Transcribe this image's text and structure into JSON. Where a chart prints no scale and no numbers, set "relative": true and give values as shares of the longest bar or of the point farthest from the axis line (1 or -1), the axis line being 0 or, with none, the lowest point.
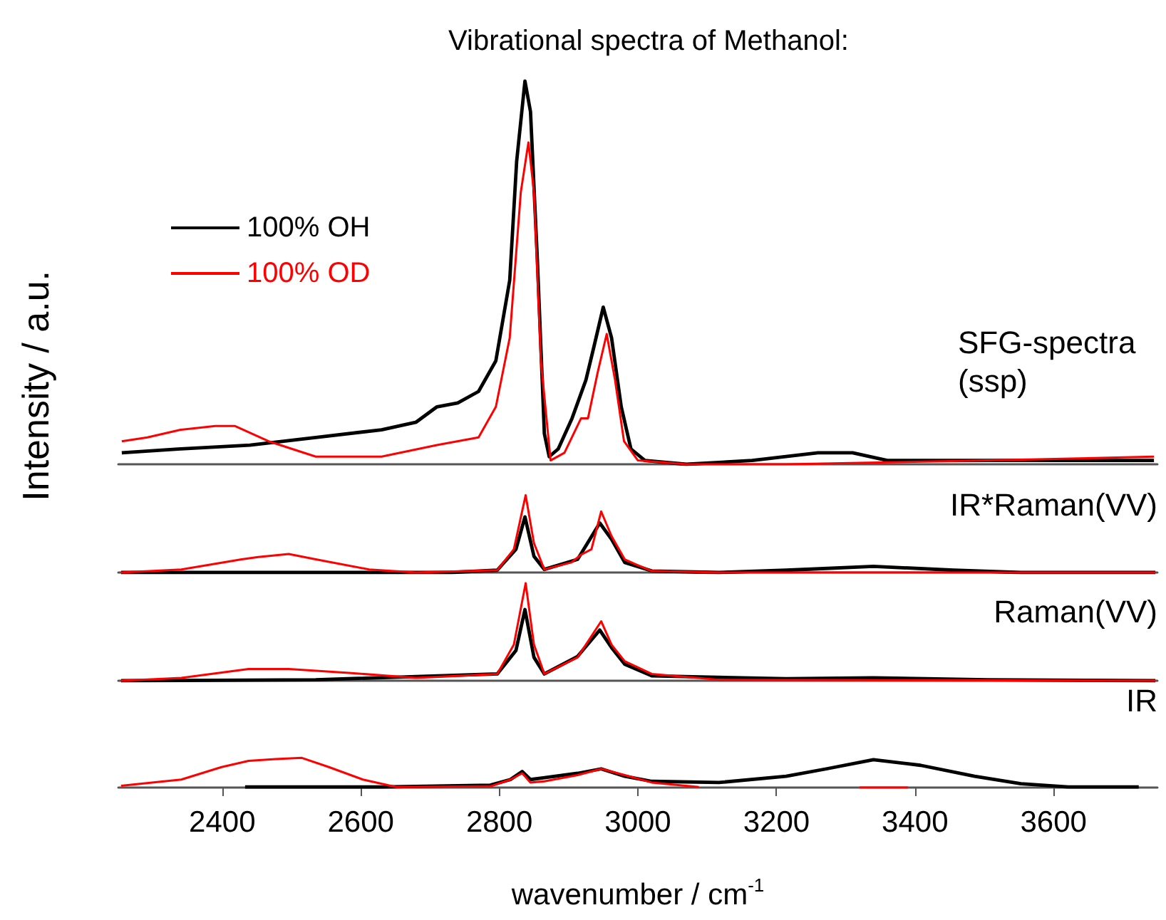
{
  "chart_data": [
    {
      "type": "line",
      "title": "Vibrational spectra of Methanol:",
      "ylabel": "Intensity / a.u.",
      "annotations": [
        "SFG-spectra (ssp)"
      ],
      "relative": true,
      "legend": "left",
      "tick_labels": false,
      "xlim": [
        2250,
        3750
      ],
      "xticks": [
        2400,
        2600,
        2800,
        3000,
        3200,
        3400,
        3600
      ],
      "series": [
        {
          "name": "100% OH",
          "color": "#000000",
          "x": [
            2255,
            2340,
            2440,
            2535,
            2630,
            2680,
            2710,
            2740,
            2770,
            2795,
            2815,
            2825,
            2837,
            2845,
            2855,
            2865,
            2872,
            2885,
            2905,
            2925,
            2937,
            2950,
            2962,
            2976,
            2990,
            3010,
            3070,
            3165,
            3260,
            3310,
            3360,
            3455,
            3745
          ],
          "values": [
            0.03,
            0.04,
            0.05,
            0.07,
            0.09,
            0.11,
            0.15,
            0.16,
            0.19,
            0.27,
            0.48,
            0.79,
            1.0,
            0.92,
            0.53,
            0.08,
            0.02,
            0.04,
            0.12,
            0.22,
            0.31,
            0.41,
            0.33,
            0.15,
            0.04,
            0.01,
            0.0,
            0.01,
            0.03,
            0.03,
            0.01,
            0.01,
            0.01
          ]
        },
        {
          "name": "100% OD",
          "color": "#ff0000",
          "x": [
            2255,
            2292,
            2340,
            2390,
            2418,
            2467,
            2535,
            2630,
            2710,
            2770,
            2795,
            2815,
            2831,
            2842,
            2850,
            2860,
            2874,
            2894,
            2918,
            2928,
            2942,
            2955,
            2967,
            2980,
            3000,
            3070,
            3214,
            3505,
            3745
          ],
          "values": [
            0.06,
            0.07,
            0.09,
            0.1,
            0.1,
            0.06,
            0.02,
            0.02,
            0.05,
            0.07,
            0.15,
            0.33,
            0.71,
            0.84,
            0.71,
            0.27,
            0.01,
            0.03,
            0.12,
            0.12,
            0.24,
            0.34,
            0.22,
            0.06,
            0.01,
            0.0,
            0.0,
            0.01,
            0.02
          ]
        }
      ]
    },
    {
      "type": "line",
      "annotations": [
        "IR*Raman(VV)"
      ],
      "relative": true,
      "tick_labels": false,
      "xlim": [
        2250,
        3750
      ],
      "xticks": [
        2400,
        2600,
        2800,
        3000,
        3200,
        3400,
        3600
      ],
      "series": [
        {
          "color": "#000000",
          "x": [
            2254,
            2729,
            2797,
            2824,
            2837,
            2850,
            2865,
            2913,
            2945,
            2962,
            2981,
            3020,
            3117,
            3214,
            3340,
            3456,
            3553,
            3747
          ],
          "values": [
            0,
            0,
            0.03,
            0.3,
            0.72,
            0.21,
            0.04,
            0.17,
            0.64,
            0.43,
            0.13,
            0.02,
            0,
            0.03,
            0.08,
            0.03,
            0,
            0
          ]
        },
        {
          "color": "#ff0000",
          "x": [
            2254,
            2341,
            2428,
            2452,
            2496,
            2535,
            2612,
            2680,
            2797,
            2821,
            2838,
            2850,
            2865,
            2904,
            2918,
            2933,
            2947,
            2962,
            2981,
            2996,
            3020,
            3117,
            3747
          ],
          "values": [
            0,
            0.04,
            0.17,
            0.2,
            0.24,
            0.17,
            0.04,
            0,
            0.03,
            0.3,
            1.0,
            0.38,
            0.04,
            0.13,
            0.23,
            0.3,
            0.79,
            0.47,
            0.17,
            0.11,
            0.02,
            0,
            0
          ]
        }
      ]
    },
    {
      "type": "line",
      "annotations": [
        "Raman(VV)"
      ],
      "relative": true,
      "tick_labels": false,
      "xlim": [
        2250,
        3750
      ],
      "xticks": [
        2400,
        2600,
        2800,
        3000,
        3200,
        3400,
        3600
      ],
      "series": [
        {
          "color": "#000000",
          "x": [
            2254,
            2535,
            2797,
            2824,
            2837,
            2850,
            2865,
            2913,
            2945,
            2962,
            2981,
            3020,
            3214,
            3340,
            3505,
            3747
          ],
          "values": [
            0,
            0.01,
            0.07,
            0.31,
            0.73,
            0.24,
            0.07,
            0.25,
            0.52,
            0.34,
            0.17,
            0.05,
            0.02,
            0.03,
            0.01,
            0
          ]
        },
        {
          "color": "#ff0000",
          "x": [
            2254,
            2341,
            2438,
            2496,
            2583,
            2680,
            2797,
            2821,
            2838,
            2850,
            2865,
            2913,
            2947,
            2962,
            2981,
            3020,
            3117,
            3747
          ],
          "values": [
            0,
            0.03,
            0.12,
            0.12,
            0.08,
            0.03,
            0.07,
            0.37,
            1.0,
            0.37,
            0.07,
            0.24,
            0.61,
            0.37,
            0.2,
            0.07,
            0.01,
            0
          ]
        }
      ]
    },
    {
      "type": "line",
      "xlabel": "wavenumber / cm$^{-1}$",
      "annotations": [
        "IR"
      ],
      "relative": true,
      "tick_labels": "x",
      "xlim": [
        2250,
        3750
      ],
      "xticks": [
        2400,
        2600,
        2800,
        3000,
        3200,
        3400,
        3600
      ],
      "series": [
        {
          "color": "#000000",
          "x": [
            2433,
            2632,
            2787,
            2816,
            2833,
            2845,
            2913,
            2947,
            2981,
            3020,
            3117,
            3214,
            3272,
            3340,
            3408,
            3486,
            3553,
            3621,
            3723
          ],
          "values": [
            0.02,
            0.02,
            0.08,
            0.27,
            0.54,
            0.27,
            0.48,
            0.63,
            0.38,
            0.21,
            0.17,
            0.38,
            0.63,
            0.94,
            0.75,
            0.38,
            0.13,
            0.02,
            0.02
          ]
        },
        {
          "color": "#ff0000",
          "x": [
            2254,
            2341,
            2399,
            2438,
            2477,
            2515,
            2554,
            2603,
            2651,
            2787,
            2816,
            2833,
            2845,
            2865,
            2913,
            2947,
            2981,
            3020,
            3088,
            3200,
            3320,
            3390
          ],
          "values": [
            0.06,
            0.27,
            0.69,
            0.9,
            0.96,
            1.0,
            0.69,
            0.27,
            0.02,
            0.04,
            0.27,
            0.48,
            0.17,
            0.21,
            0.42,
            0.63,
            0.42,
            0.17,
            0.02,
            null,
            0,
            0
          ]
        }
      ]
    }
  ]
}
